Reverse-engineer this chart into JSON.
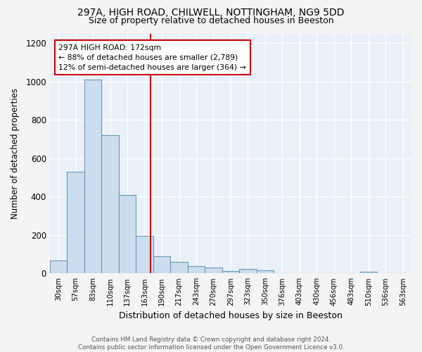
{
  "title_line1": "297A, HIGH ROAD, CHILWELL, NOTTINGHAM, NG9 5DD",
  "title_line2": "Size of property relative to detached houses in Beeston",
  "xlabel": "Distribution of detached houses by size in Beeston",
  "ylabel": "Number of detached properties",
  "bar_color": "#ccdded",
  "bar_edge_color": "#6699bb",
  "background_color": "#eaf0f8",
  "grid_color": "#ffffff",
  "fig_bg_color": "#f4f4f4",
  "categories": [
    "30sqm",
    "57sqm",
    "83sqm",
    "110sqm",
    "137sqm",
    "163sqm",
    "190sqm",
    "217sqm",
    "243sqm",
    "270sqm",
    "297sqm",
    "323sqm",
    "350sqm",
    "376sqm",
    "403sqm",
    "430sqm",
    "456sqm",
    "483sqm",
    "510sqm",
    "536sqm",
    "563sqm"
  ],
  "values": [
    68,
    530,
    1010,
    720,
    407,
    197,
    88,
    60,
    37,
    32,
    14,
    22,
    15,
    0,
    0,
    0,
    0,
    0,
    10,
    0,
    0
  ],
  "vline_x": 5.35,
  "vline_color": "#cc0000",
  "annotation_line1": "297A HIGH ROAD: 172sqm",
  "annotation_line2": "← 88% of detached houses are smaller (2,789)",
  "annotation_line3": "12% of semi-detached houses are larger (364) →",
  "annotation_box_color": "#ffffff",
  "annotation_box_edge": "#cc0000",
  "footer": "Contains HM Land Registry data © Crown copyright and database right 2024.\nContains public sector information licensed under the Open Government Licence v3.0.",
  "ylim": [
    0,
    1250
  ],
  "yticks": [
    0,
    200,
    400,
    600,
    800,
    1000,
    1200
  ]
}
